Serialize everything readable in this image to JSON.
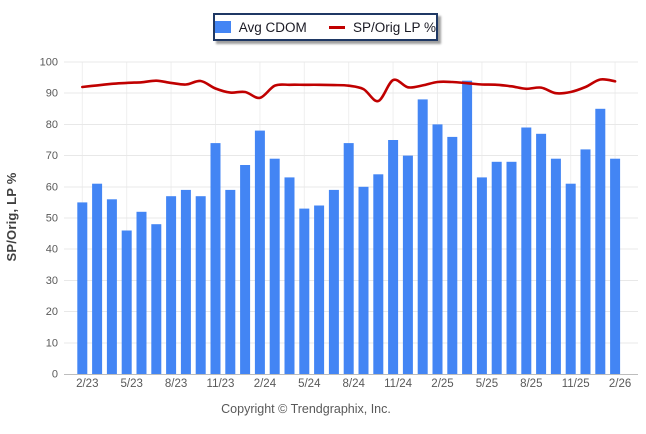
{
  "legend": {
    "items": [
      {
        "label": "Avg CDOM",
        "type": "bar",
        "color": "#4385F4"
      },
      {
        "label": "SP/Orig LP %",
        "type": "line",
        "color": "#C00000"
      }
    ]
  },
  "chart_data": {
    "type": "bar+line",
    "title": "",
    "ylabel": "SP/Orig, LP %",
    "xlabel": "",
    "ylim": [
      0,
      100
    ],
    "y_ticks": [
      0,
      10,
      20,
      30,
      40,
      50,
      60,
      70,
      80,
      90,
      100
    ],
    "x_tick_labels": [
      "2/23",
      "5/23",
      "8/23",
      "11/23",
      "2/24",
      "5/24",
      "8/24",
      "11/24",
      "2/25",
      "5/25",
      "8/25",
      "11/25",
      "2/26"
    ],
    "x_tick_every": 3,
    "grid": "horizontal major, faint vertical at ticks",
    "legend_position": "top-center",
    "series": [
      {
        "name": "Avg CDOM",
        "type": "bar",
        "color": "#4385F4",
        "values": [
          55,
          61,
          56,
          46,
          52,
          48,
          57,
          59,
          57,
          74,
          59,
          67,
          78,
          69,
          63,
          53,
          54,
          59,
          74,
          60,
          64,
          75,
          70,
          88,
          80,
          76,
          94,
          63,
          68,
          68,
          79,
          77,
          69,
          61,
          72,
          85,
          69
        ]
      },
      {
        "name": "SP/Orig LP %",
        "type": "line",
        "color": "#C00000",
        "values": [
          92,
          92.5,
          93,
          93.3,
          93.5,
          94,
          93.3,
          92.8,
          93.9,
          91.5,
          90.2,
          90.4,
          88.5,
          92.4,
          92.7,
          92.7,
          92.7,
          92.6,
          92.4,
          91.3,
          87.5,
          94.2,
          91.9,
          92.5,
          93.6,
          93.6,
          93.2,
          92.8,
          92.7,
          92.2,
          91.4,
          91.8,
          90,
          90.4,
          92,
          94.4,
          93.8
        ]
      }
    ]
  },
  "footer": {
    "copyright": "Copyright © Trendgraphix, Inc."
  },
  "colors": {
    "bar": "#4385F4",
    "line": "#C00000",
    "grid": "#E8E8E8",
    "vgrid": "#EFEFEF",
    "axis": "#BDBDBD",
    "tick_text": "#595959",
    "legend_border": "#1F3864"
  }
}
